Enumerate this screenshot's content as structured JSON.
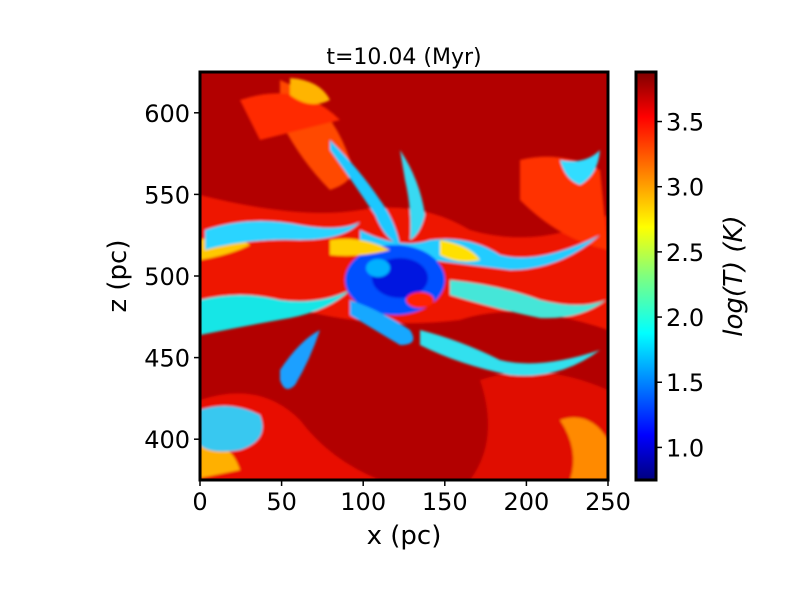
{
  "chart_data": {
    "type": "heatmap",
    "title": "t=10.04 (Myr)",
    "xlabel": "x (pc)",
    "ylabel": "z (pc)",
    "xlim": [
      0,
      250
    ],
    "ylim": [
      375,
      625
    ],
    "xticks": [
      0,
      50,
      100,
      150,
      200,
      250
    ],
    "yticks": [
      400,
      450,
      500,
      550,
      600
    ],
    "colorbar": {
      "label": "log(T) (K)",
      "range": [
        0.75,
        3.88
      ],
      "ticks": [
        1.0,
        1.5,
        2.0,
        2.5,
        3.0,
        3.5
      ],
      "colormap": "jet"
    },
    "description_values": {
      "background_logT": 3.8,
      "cold_filament_logT": 1.8,
      "center": [
        120,
        500
      ]
    }
  }
}
